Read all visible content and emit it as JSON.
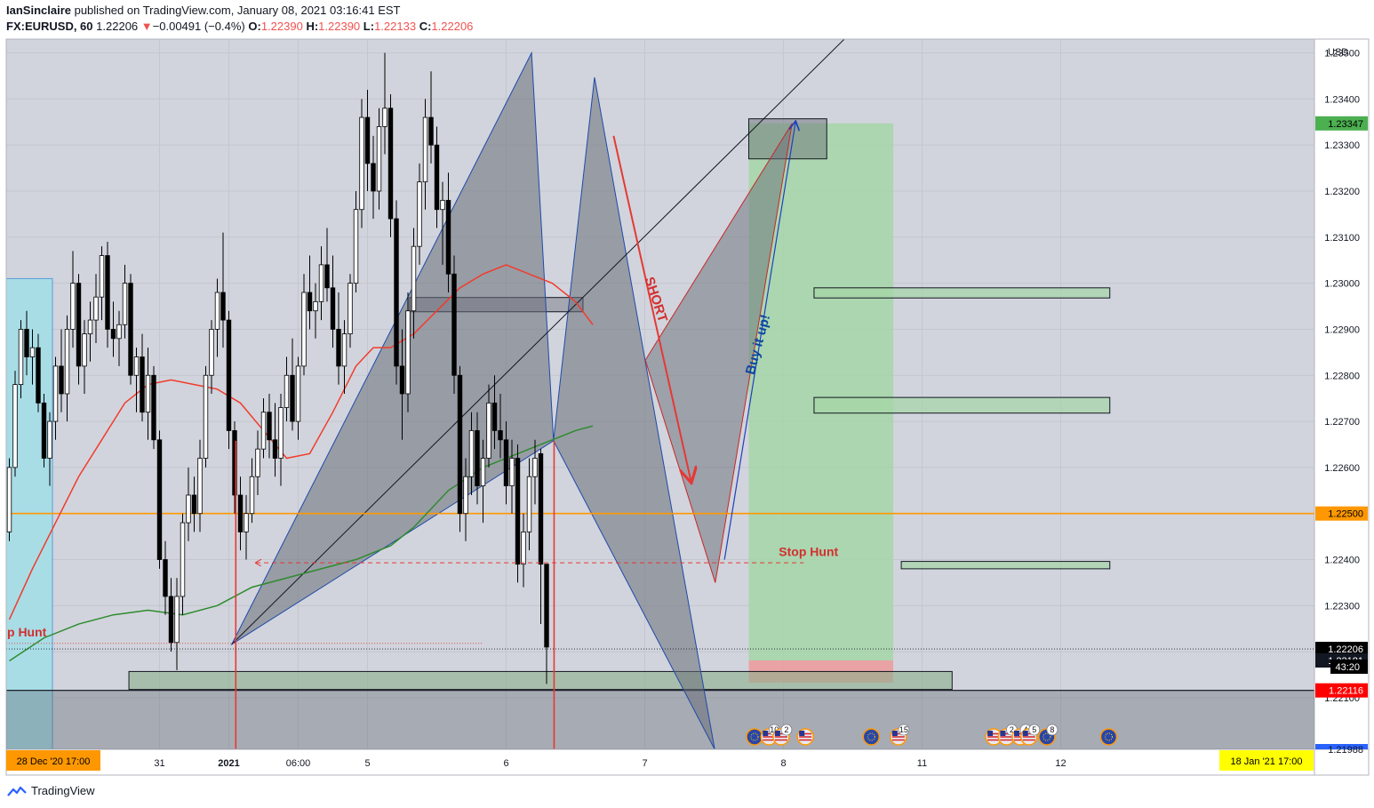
{
  "header": {
    "author": "IanSinclaire",
    "published_text": " published on TradingView.com, January 08, 2021 03:16:41 EST",
    "symbol": "FX:EURUSD, 60",
    "last": "1.22206",
    "change_arrow": "▼",
    "change": "−0.00491 (−0.4%)",
    "o_label": "O:",
    "o": "1.22390",
    "h_label": "H:",
    "h": "1.22390",
    "l_label": "L:",
    "l": "1.22133",
    "c_label": "C:",
    "c": "1.22206"
  },
  "footer": {
    "brand": "TradingView",
    "logo_icon": "tradingview-logo-icon"
  },
  "colors": {
    "background": "#d1d4dc",
    "bull": "#ffffff",
    "bear": "#000000",
    "ma_red": "#f23b2b",
    "ma_green": "#2e8b2e",
    "level_orange": "#ff9800",
    "pattern_fill": "#6a6e78",
    "tp_green": "#a5d6a7",
    "sl_red": "#ef9a9a",
    "annotation_red": "#d32f2f",
    "annotation_blue": "#0d47a1"
  },
  "chart_data": {
    "type": "candlestick",
    "currency": "USD",
    "ylim": [
      1.21988,
      1.2353
    ],
    "y_ticks": [
      "1.23500",
      "1.23400",
      "1.23300",
      "1.23200",
      "1.23100",
      "1.23000",
      "1.22900",
      "1.22800",
      "1.22700",
      "1.22600",
      "1.22500",
      "1.22400",
      "1.22300",
      "1.22200",
      "1.22100"
    ],
    "x_labels": [
      {
        "label": "31",
        "bar": 26
      },
      {
        "label": "2021",
        "bar": 38
      },
      {
        "label": "06:00",
        "bar": 50
      },
      {
        "label": "5",
        "bar": 62
      },
      {
        "label": "6",
        "bar": 86
      },
      {
        "label": "7",
        "bar": 110
      },
      {
        "label": "8",
        "bar": 134
      },
      {
        "label": "11",
        "bar": 158
      },
      {
        "label": "12",
        "bar": 182
      }
    ],
    "start_time_label": "28 Dec '20   17:00",
    "end_time_label": "18 Jan '21   17:00",
    "price_labels": [
      {
        "value": 1.23347,
        "text": "1.23347",
        "color": "#4caf50"
      },
      {
        "value": 1.225,
        "text": "1.22500",
        "color": "#ff9800"
      },
      {
        "value": 1.22206,
        "text": "1.22206",
        "color": "#000000"
      },
      {
        "value": 1.22181,
        "text": "1.22181",
        "color": "#131722"
      },
      {
        "value": 1.22116,
        "text": "1.22116",
        "color": "#ff0000"
      }
    ],
    "countdown": "43:20",
    "bottom_partial_label": "1.21988",
    "ohlc": [
      [
        1.2246,
        1.2262,
        1.2244,
        1.226
      ],
      [
        1.226,
        1.2281,
        1.2258,
        1.2278
      ],
      [
        1.2278,
        1.2292,
        1.2275,
        1.229
      ],
      [
        1.229,
        1.2294,
        1.228,
        1.2284
      ],
      [
        1.2284,
        1.229,
        1.2278,
        1.2286
      ],
      [
        1.2286,
        1.2289,
        1.2272,
        1.2274
      ],
      [
        1.2274,
        1.2276,
        1.226,
        1.2262
      ],
      [
        1.2262,
        1.2272,
        1.2256,
        1.227
      ],
      [
        1.227,
        1.2284,
        1.2266,
        1.2282
      ],
      [
        1.2282,
        1.229,
        1.2272,
        1.2276
      ],
      [
        1.2276,
        1.2293,
        1.227,
        1.229
      ],
      [
        1.229,
        1.2307,
        1.2286,
        1.23
      ],
      [
        1.23,
        1.2302,
        1.2278,
        1.2282
      ],
      [
        1.2282,
        1.2292,
        1.2276,
        1.2289
      ],
      [
        1.2289,
        1.2296,
        1.2283,
        1.2292
      ],
      [
        1.2292,
        1.2302,
        1.2287,
        1.2297
      ],
      [
        1.2297,
        1.2308,
        1.2292,
        1.2306
      ],
      [
        1.2306,
        1.2309,
        1.2286,
        1.229
      ],
      [
        1.229,
        1.2296,
        1.2284,
        1.2288
      ],
      [
        1.2288,
        1.2294,
        1.2282,
        1.2291
      ],
      [
        1.2291,
        1.2304,
        1.2288,
        1.23
      ],
      [
        1.23,
        1.2302,
        1.2278,
        1.228
      ],
      [
        1.228,
        1.2286,
        1.2272,
        1.2284
      ],
      [
        1.2284,
        1.2289,
        1.227,
        1.2272
      ],
      [
        1.2272,
        1.2286,
        1.2266,
        1.228
      ],
      [
        1.228,
        1.2282,
        1.2264,
        1.2266
      ],
      [
        1.2266,
        1.2268,
        1.2238,
        1.224
      ],
      [
        1.224,
        1.2244,
        1.2228,
        1.2232
      ],
      [
        1.2232,
        1.2236,
        1.222,
        1.2222
      ],
      [
        1.2222,
        1.2236,
        1.2216,
        1.2232
      ],
      [
        1.2232,
        1.225,
        1.2228,
        1.2248
      ],
      [
        1.2248,
        1.226,
        1.2244,
        1.2254
      ],
      [
        1.2254,
        1.2258,
        1.2246,
        1.225
      ],
      [
        1.225,
        1.2266,
        1.2246,
        1.2262
      ],
      [
        1.2262,
        1.2282,
        1.226,
        1.228
      ],
      [
        1.228,
        1.2292,
        1.2276,
        1.229
      ],
      [
        1.229,
        1.2301,
        1.2284,
        1.2298
      ],
      [
        1.2298,
        1.2311,
        1.2286,
        1.2292
      ],
      [
        1.2292,
        1.2294,
        1.2264,
        1.2268
      ],
      [
        1.2268,
        1.227,
        1.225,
        1.2254
      ],
      [
        1.2254,
        1.2258,
        1.2242,
        1.2246
      ],
      [
        1.2246,
        1.2254,
        1.224,
        1.225
      ],
      [
        1.225,
        1.2262,
        1.2248,
        1.2258
      ],
      [
        1.2258,
        1.2268,
        1.2254,
        1.2264
      ],
      [
        1.2264,
        1.2275,
        1.2262,
        1.2272
      ],
      [
        1.2272,
        1.2276,
        1.2262,
        1.2266
      ],
      [
        1.2266,
        1.2274,
        1.2258,
        1.2262
      ],
      [
        1.2262,
        1.2276,
        1.2256,
        1.2273
      ],
      [
        1.2273,
        1.2284,
        1.227,
        1.228
      ],
      [
        1.228,
        1.2288,
        1.2268,
        1.227
      ],
      [
        1.227,
        1.2284,
        1.2266,
        1.2282
      ],
      [
        1.2282,
        1.2302,
        1.228,
        1.2298
      ],
      [
        1.2298,
        1.2306,
        1.229,
        1.2294
      ],
      [
        1.2294,
        1.23,
        1.2288,
        1.2296
      ],
      [
        1.2296,
        1.2308,
        1.2292,
        1.2304
      ],
      [
        1.2304,
        1.2312,
        1.2296,
        1.2299
      ],
      [
        1.2299,
        1.2306,
        1.2286,
        1.229
      ],
      [
        1.229,
        1.2298,
        1.2278,
        1.2282
      ],
      [
        1.2282,
        1.2292,
        1.2276,
        1.2289
      ],
      [
        1.2289,
        1.2302,
        1.2286,
        1.23
      ],
      [
        1.23,
        1.232,
        1.2298,
        1.2316
      ],
      [
        1.2316,
        1.234,
        1.2312,
        1.2336
      ],
      [
        1.2336,
        1.2342,
        1.232,
        1.2326
      ],
      [
        1.2326,
        1.2332,
        1.2314,
        1.232
      ],
      [
        1.232,
        1.2338,
        1.2316,
        1.2334
      ],
      [
        1.2334,
        1.235,
        1.2328,
        1.2338
      ],
      [
        1.2338,
        1.2341,
        1.231,
        1.2314
      ],
      [
        1.2314,
        1.2318,
        1.2278,
        1.2282
      ],
      [
        1.2282,
        1.229,
        1.2266,
        1.2276
      ],
      [
        1.2276,
        1.2298,
        1.2272,
        1.2294
      ],
      [
        1.2294,
        1.2312,
        1.2288,
        1.2308
      ],
      [
        1.2308,
        1.2326,
        1.2304,
        1.2322
      ],
      [
        1.2322,
        1.234,
        1.2316,
        1.2336
      ],
      [
        1.2336,
        1.2346,
        1.2326,
        1.233
      ],
      [
        1.233,
        1.2334,
        1.2312,
        1.2316
      ],
      [
        1.2316,
        1.2322,
        1.2304,
        1.2318
      ],
      [
        1.2318,
        1.2324,
        1.2298,
        1.2302
      ],
      [
        1.2302,
        1.2306,
        1.2276,
        1.228
      ],
      [
        1.228,
        1.2282,
        1.2246,
        1.225
      ],
      [
        1.225,
        1.2262,
        1.2244,
        1.2258
      ],
      [
        1.2258,
        1.2272,
        1.2254,
        1.2268
      ],
      [
        1.2268,
        1.2272,
        1.2252,
        1.2256
      ],
      [
        1.2256,
        1.2266,
        1.2248,
        1.2262
      ],
      [
        1.2262,
        1.2278,
        1.226,
        1.2274
      ],
      [
        1.2274,
        1.228,
        1.2264,
        1.2268
      ],
      [
        1.2268,
        1.2276,
        1.2262,
        1.2266
      ],
      [
        1.2266,
        1.227,
        1.2252,
        1.2256
      ],
      [
        1.2256,
        1.2266,
        1.225,
        1.2262
      ],
      [
        1.2262,
        1.2265,
        1.2235,
        1.2239
      ],
      [
        1.2239,
        1.225,
        1.2234,
        1.2246
      ],
      [
        1.2246,
        1.2262,
        1.2242,
        1.2258
      ],
      [
        1.2258,
        1.2266,
        1.2252,
        1.2262
      ],
      [
        1.2263,
        1.2264,
        1.2226,
        1.2239
      ],
      [
        1.2239,
        1.2239,
        1.2213,
        1.2221
      ]
    ],
    "moving_averages": [
      {
        "color": "#f23b2b",
        "points": [
          [
            0,
            1.2227
          ],
          [
            4,
            1.2238
          ],
          [
            8,
            1.2248
          ],
          [
            12,
            1.2258
          ],
          [
            16,
            1.2266
          ],
          [
            20,
            1.2274
          ],
          [
            24,
            1.2278
          ],
          [
            28,
            1.2279
          ],
          [
            32,
            1.2278
          ],
          [
            36,
            1.2277
          ],
          [
            40,
            1.2274
          ],
          [
            44,
            1.2268
          ],
          [
            48,
            1.2262
          ],
          [
            52,
            1.2263
          ],
          [
            56,
            1.2272
          ],
          [
            60,
            1.2282
          ],
          [
            63,
            1.2286
          ],
          [
            66,
            1.2286
          ],
          [
            70,
            1.2289
          ],
          [
            74,
            1.2294
          ],
          [
            78,
            1.2299
          ],
          [
            82,
            1.2302
          ],
          [
            86,
            1.2304
          ],
          [
            90,
            1.2302
          ],
          [
            94,
            1.23
          ],
          [
            98,
            1.2296
          ],
          [
            101,
            1.2291
          ]
        ]
      },
      {
        "color": "#2e8b2e",
        "points": [
          [
            0,
            1.2218
          ],
          [
            6,
            1.2223
          ],
          [
            12,
            1.2226
          ],
          [
            18,
            1.2228
          ],
          [
            24,
            1.2229
          ],
          [
            30,
            1.2228
          ],
          [
            36,
            1.223
          ],
          [
            42,
            1.2234
          ],
          [
            48,
            1.2236
          ],
          [
            54,
            1.2238
          ],
          [
            60,
            1.224
          ],
          [
            66,
            1.2243
          ],
          [
            70,
            1.2247
          ],
          [
            76,
            1.2255
          ],
          [
            82,
            1.226
          ],
          [
            86,
            1.2262
          ],
          [
            90,
            1.2264
          ],
          [
            94,
            1.2266
          ],
          [
            98,
            1.2268
          ],
          [
            101,
            1.2269
          ]
        ]
      }
    ],
    "level_line": 1.225,
    "pattern_points": [
      {
        "bar": 38.5,
        "price": 1.22216
      },
      {
        "bar": 90.4,
        "price": 1.235
      },
      {
        "bar": 94.2,
        "price": 1.22658
      },
      {
        "bar": 101.3,
        "price": 1.23447
      },
      {
        "bar": 122.1,
        "price": 1.21988
      }
    ],
    "projection_points": [
      {
        "bar": 110.1,
        "price": 1.22833
      },
      {
        "bar": 122.2,
        "price": 1.2235
      },
      {
        "bar": 135.5,
        "price": 1.23347
      }
    ],
    "trendline": [
      {
        "bar": 38.5,
        "price": 1.22216
      },
      {
        "bar": 151,
        "price": 1.2361
      }
    ],
    "boxes": [
      {
        "bar1": 69.3,
        "bar2": 99.3,
        "p1": 1.22969,
        "p2": 1.22938,
        "fill": "rgba(110,114,122,0.45)"
      },
      {
        "bar1": 128.0,
        "bar2": 141.5,
        "p1": 1.23357,
        "p2": 1.2327,
        "fill": "rgba(110,114,122,0.5)"
      },
      {
        "bar1": 139.3,
        "bar2": 190.5,
        "p1": 1.2299,
        "p2": 1.22968,
        "fill": "rgba(165,214,167,0.7)"
      },
      {
        "bar1": 139.3,
        "bar2": 190.5,
        "p1": 1.22752,
        "p2": 1.22718,
        "fill": "rgba(165,214,167,0.7)"
      },
      {
        "bar1": 154.4,
        "bar2": 190.5,
        "p1": 1.22396,
        "p2": 1.2238,
        "fill": "rgba(165,214,167,0.7)"
      },
      {
        "bar1": 20.7,
        "bar2": 163.2,
        "p1": 1.22157,
        "p2": 1.22118,
        "fill": "rgba(140,175,140,0.6)"
      }
    ],
    "position": {
      "bar1": 128.0,
      "bar2": 153.0,
      "entry": 1.22181,
      "target": 1.23347,
      "stop": 1.22133
    },
    "annotations": {
      "short": "SHORT",
      "buy": "Buy it up!",
      "stop_hunt": "Stop Hunt",
      "stop_hunt_left": "p Hunt"
    },
    "short_arrow": [
      {
        "bar": 104.6,
        "price": 1.2332
      },
      {
        "bar": 118.0,
        "price": 1.2257
      }
    ],
    "buy_arrow": [
      {
        "bar": 123.8,
        "price": 1.224
      },
      {
        "bar": 136.1,
        "price": 1.2335
      }
    ],
    "stop_hunt_line": {
      "bar1": 42.7,
      "bar2": 137.5,
      "price": 1.22393
    },
    "vertical_markers": [
      39.2,
      94.3
    ],
    "event_badges": [
      {
        "bar": 129.0,
        "text": "",
        "icon": "eu-flag-icon"
      },
      {
        "bar": 131.5,
        "text": "10",
        "icon": "us-flag-icon"
      },
      {
        "bar": 133.6,
        "text": "2",
        "icon": "us-flag-icon"
      },
      {
        "bar": 137.8,
        "text": "",
        "icon": "us-flag-icon"
      },
      {
        "bar": 149.2,
        "text": "",
        "icon": "eu-flag-icon"
      },
      {
        "bar": 153.9,
        "text": "15",
        "icon": "us-flag-icon"
      },
      {
        "bar": 170.4,
        "text": "",
        "icon": "us-flag-icon"
      },
      {
        "bar": 172.6,
        "text": "2",
        "icon": "us-flag-icon"
      },
      {
        "bar": 175.0,
        "text": "4",
        "icon": "us-flag-icon"
      },
      {
        "bar": 176.5,
        "text": "5",
        "icon": "us-flag-icon"
      },
      {
        "bar": 179.6,
        "text": "8",
        "icon": "eu-flag-icon"
      },
      {
        "bar": 190.3,
        "text": "",
        "icon": "eu-flag-icon"
      }
    ]
  }
}
